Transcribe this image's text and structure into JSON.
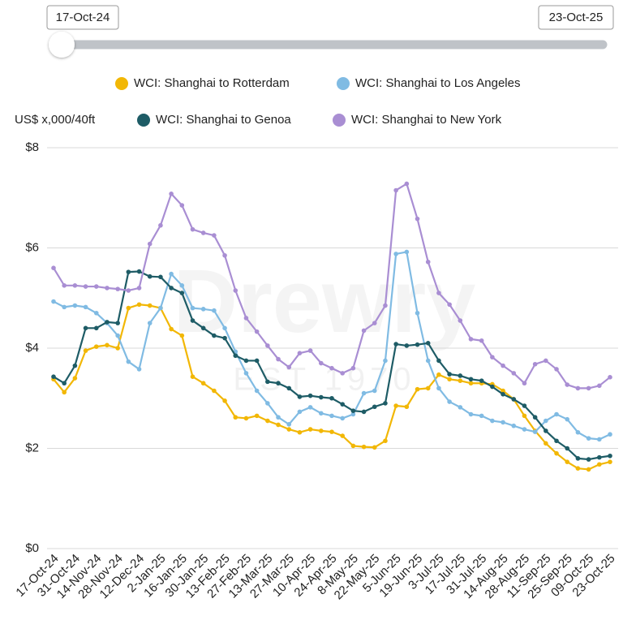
{
  "slider": {
    "start": "17-Oct-24",
    "end": "23-Oct-25"
  },
  "chart_data": {
    "type": "line",
    "y_label": "US$ x,000/40ft",
    "watermark": "Drewry",
    "watermark_sub": "EST 1970",
    "categories": [
      "17-Oct-24",
      null,
      "31-Oct-24",
      null,
      "14-Nov-24",
      null,
      "28-Nov-24",
      null,
      "12-Dec-24",
      null,
      "2-Jan-25",
      null,
      "16-Jan-25",
      null,
      "30-Jan-25",
      null,
      "13-Feb-25",
      null,
      "27-Feb-25",
      null,
      "13-Mar-25",
      null,
      "27-Mar-25",
      null,
      "10-Apr-25",
      null,
      "24-Apr-25",
      null,
      "8-May-25",
      null,
      "22-May-25",
      null,
      "5-Jun-25",
      null,
      "19-Jun-25",
      null,
      "3-Jul-25",
      null,
      "17-Jul-25",
      null,
      "31-Jul-25",
      null,
      "14-Aug-25",
      null,
      "28-Aug-25",
      null,
      "11-Sep-25",
      null,
      "25-Sep-25",
      null,
      "09-Oct-25",
      null,
      "23-Oct-25"
    ],
    "ylim": [
      0,
      8
    ],
    "yticks": [
      {
        "value": 0,
        "label": "$0"
      },
      {
        "value": 2,
        "label": "$2"
      },
      {
        "value": 4,
        "label": "$4"
      },
      {
        "value": 6,
        "label": "$6"
      },
      {
        "value": 8,
        "label": "$8"
      }
    ],
    "grid": true,
    "series": [
      {
        "name": "WCI: Shanghai to Rotterdam",
        "color": "#f2b705",
        "values": [
          3.38,
          3.12,
          3.4,
          3.95,
          4.03,
          4.06,
          4.0,
          4.8,
          4.87,
          4.85,
          4.8,
          4.38,
          4.25,
          3.43,
          3.3,
          3.15,
          2.95,
          2.62,
          2.6,
          2.65,
          2.55,
          2.47,
          2.38,
          2.32,
          2.38,
          2.35,
          2.33,
          2.25,
          2.05,
          2.03,
          2.02,
          2.15,
          2.85,
          2.83,
          3.18,
          3.2,
          3.47,
          3.38,
          3.35,
          3.3,
          3.3,
          3.28,
          3.15,
          2.98,
          2.65,
          2.35,
          2.1,
          1.9,
          1.73,
          1.6,
          1.58,
          1.68,
          1.73
        ]
      },
      {
        "name": "WCI: Shanghai to Los Angeles",
        "color": "#80bbe3",
        "values": [
          4.93,
          4.82,
          4.85,
          4.82,
          4.7,
          4.5,
          4.25,
          3.73,
          3.58,
          4.5,
          4.8,
          5.48,
          5.25,
          4.8,
          4.78,
          4.75,
          4.4,
          3.93,
          3.5,
          3.15,
          2.9,
          2.62,
          2.48,
          2.73,
          2.82,
          2.7,
          2.65,
          2.6,
          2.68,
          3.1,
          3.15,
          3.75,
          5.88,
          5.92,
          4.7,
          3.75,
          3.2,
          2.93,
          2.82,
          2.68,
          2.65,
          2.55,
          2.52,
          2.45,
          2.38,
          2.33,
          2.55,
          2.68,
          2.58,
          2.32,
          2.2,
          2.18,
          2.28
        ]
      },
      {
        "name": "WCI: Shanghai to Genoa",
        "color": "#1e5c66",
        "values": [
          3.43,
          3.3,
          3.65,
          4.4,
          4.4,
          4.52,
          4.5,
          5.52,
          5.53,
          5.43,
          5.42,
          5.2,
          5.1,
          4.55,
          4.4,
          4.25,
          4.2,
          3.85,
          3.75,
          3.75,
          3.33,
          3.3,
          3.2,
          3.03,
          3.05,
          3.02,
          3.0,
          2.88,
          2.75,
          2.73,
          2.83,
          2.9,
          4.08,
          4.05,
          4.07,
          4.1,
          3.75,
          3.48,
          3.45,
          3.38,
          3.35,
          3.23,
          3.08,
          2.98,
          2.85,
          2.62,
          2.35,
          2.15,
          2.0,
          1.8,
          1.78,
          1.82,
          1.85
        ]
      },
      {
        "name": "WCI: Shanghai to New York",
        "color": "#a98ed3",
        "values": [
          5.6,
          5.25,
          5.25,
          5.23,
          5.23,
          5.2,
          5.18,
          5.15,
          5.2,
          6.08,
          6.45,
          7.08,
          6.85,
          6.37,
          6.3,
          6.25,
          5.85,
          5.15,
          4.6,
          4.33,
          4.05,
          3.78,
          3.62,
          3.9,
          3.95,
          3.7,
          3.6,
          3.5,
          3.6,
          4.35,
          4.5,
          4.85,
          7.15,
          7.28,
          6.58,
          5.72,
          5.1,
          4.87,
          4.55,
          4.18,
          4.15,
          3.82,
          3.65,
          3.5,
          3.3,
          3.68,
          3.75,
          3.58,
          3.27,
          3.2,
          3.2,
          3.25,
          3.42
        ]
      }
    ]
  }
}
